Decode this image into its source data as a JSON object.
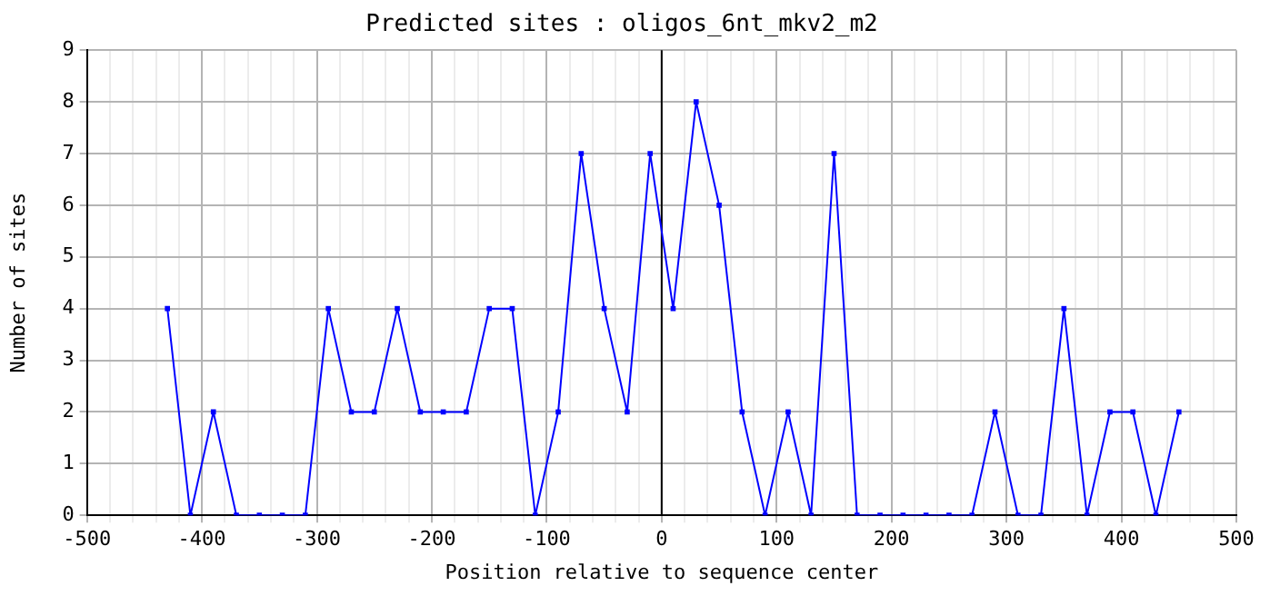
{
  "chart_data": {
    "type": "line",
    "title": "Predicted sites : oligos_6nt_mkv2_m2",
    "xlabel": "Position relative to sequence center",
    "ylabel": "Number of sites",
    "x": [
      -430,
      -410,
      -390,
      -370,
      -350,
      -330,
      -310,
      -290,
      -270,
      -250,
      -230,
      -210,
      -190,
      -170,
      -150,
      -130,
      -110,
      -90,
      -70,
      -50,
      -30,
      -10,
      10,
      30,
      50,
      70,
      90,
      110,
      130,
      150,
      170,
      190,
      210,
      230,
      250,
      270,
      290,
      310,
      330,
      350,
      370,
      390,
      410,
      430,
      450
    ],
    "series": [
      {
        "color": "#0000ff",
        "values": [
          4,
          0,
          2,
          0,
          0,
          0,
          0,
          4,
          2,
          2,
          4,
          2,
          2,
          2,
          4,
          4,
          0,
          2,
          7,
          4,
          2,
          7,
          4,
          8,
          6,
          2,
          0,
          2,
          0,
          7,
          0,
          0,
          0,
          0,
          0,
          0,
          2,
          0,
          0,
          4,
          0,
          2,
          2,
          0,
          2
        ]
      }
    ],
    "xlim": [
      -500,
      500
    ],
    "ylim": [
      0,
      9
    ],
    "xticks": [
      -500,
      {
        "value": -480,
        "label": null
      },
      {
        "value": -460,
        "label": null
      },
      {
        "value": -440,
        "label": null
      },
      {
        "value": -420,
        "label": null
      },
      -400,
      {
        "value": -380,
        "label": null
      },
      {
        "value": -360,
        "label": null
      },
      {
        "value": -340,
        "label": null
      },
      {
        "value": -320,
        "label": null
      },
      -300,
      {
        "value": -280,
        "label": null
      },
      {
        "value": -260,
        "label": null
      },
      {
        "value": -240,
        "label": null
      },
      {
        "value": -220,
        "label": null
      },
      -200,
      {
        "value": -180,
        "label": null
      },
      {
        "value": -160,
        "label": null
      },
      {
        "value": -140,
        "label": null
      },
      {
        "value": -120,
        "label": null
      },
      -100,
      {
        "value": -80,
        "label": null
      },
      {
        "value": -60,
        "label": null
      },
      {
        "value": -40,
        "label": null
      },
      {
        "value": -20,
        "label": null
      },
      0,
      {
        "value": 20,
        "label": null
      },
      {
        "value": 40,
        "label": null
      },
      {
        "value": 60,
        "label": null
      },
      {
        "value": 80,
        "label": null
      },
      100,
      {
        "value": 120,
        "label": null
      },
      {
        "value": 140,
        "label": null
      },
      {
        "value": 160,
        "label": null
      },
      {
        "value": 180,
        "label": null
      },
      200,
      {
        "value": 220,
        "label": null
      },
      {
        "value": 240,
        "label": null
      },
      {
        "value": 260,
        "label": null
      },
      {
        "value": 280,
        "label": null
      },
      300,
      {
        "value": 320,
        "label": null
      },
      {
        "value": 340,
        "label": null
      },
      {
        "value": 360,
        "label": null
      },
      {
        "value": 380,
        "label": null
      },
      400,
      {
        "value": 420,
        "label": null
      },
      {
        "value": 440,
        "label": null
      },
      {
        "value": 460,
        "label": null
      },
      {
        "value": 480,
        "label": null
      },
      500
    ],
    "yticks": [
      0,
      1,
      2,
      3,
      4,
      5,
      6,
      7,
      8,
      9
    ],
    "ref_lines": [
      {
        "axis": "x",
        "value": 0,
        "color": "#000000"
      }
    ],
    "grid": true,
    "legend": false,
    "marker": "square",
    "line_style": "solid"
  }
}
